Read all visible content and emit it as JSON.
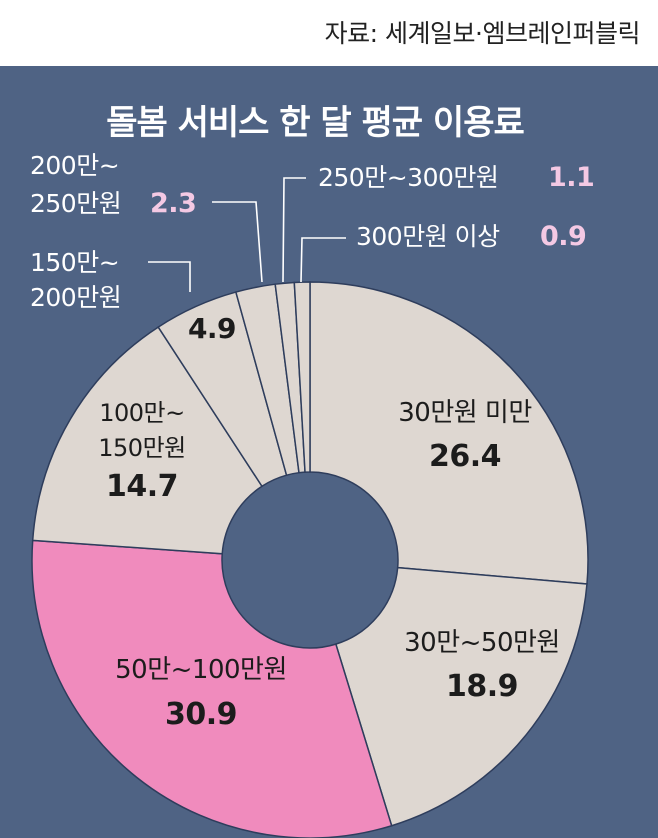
{
  "source": "자료: 세계일보·엠브레인퍼블릭",
  "colors": {
    "background": "#4f6384",
    "slice_default": "#ded7d1",
    "slice_highlight": "#f08bbd",
    "slice_stroke": "#2e3d5c",
    "leader_line": "#ffffff",
    "label_dark": "#1c1c1c",
    "label_light": "#ffffff",
    "value_outside": "#f4c9e4"
  },
  "chart_data": {
    "type": "pie",
    "title": "돌봄 서비스 한 달 평균 이용료",
    "donut": true,
    "slices": [
      {
        "label": "30만원 미만",
        "value": 26.4,
        "value_text": "26.4",
        "highlight": false
      },
      {
        "label": "30만~50만원",
        "value": 18.9,
        "value_text": "18.9",
        "highlight": false
      },
      {
        "label": "50만~100만원",
        "value": 30.9,
        "value_text": "30.9",
        "highlight": true
      },
      {
        "label_lines": [
          "100만~",
          "150만원"
        ],
        "value": 14.7,
        "value_text": "14.7",
        "highlight": false
      },
      {
        "label_lines": [
          "150만~",
          "200만원"
        ],
        "value": 4.9,
        "value_text": "4.9",
        "highlight": false
      },
      {
        "label_lines": [
          "200만~",
          "250만원"
        ],
        "value": 2.3,
        "value_text": "2.3",
        "highlight": false
      },
      {
        "label": "250만~300만원",
        "value": 1.1,
        "value_text": "1.1",
        "highlight": false
      },
      {
        "label": "300만원 이상",
        "value": 0.9,
        "value_text": "0.9",
        "highlight": false
      }
    ]
  }
}
